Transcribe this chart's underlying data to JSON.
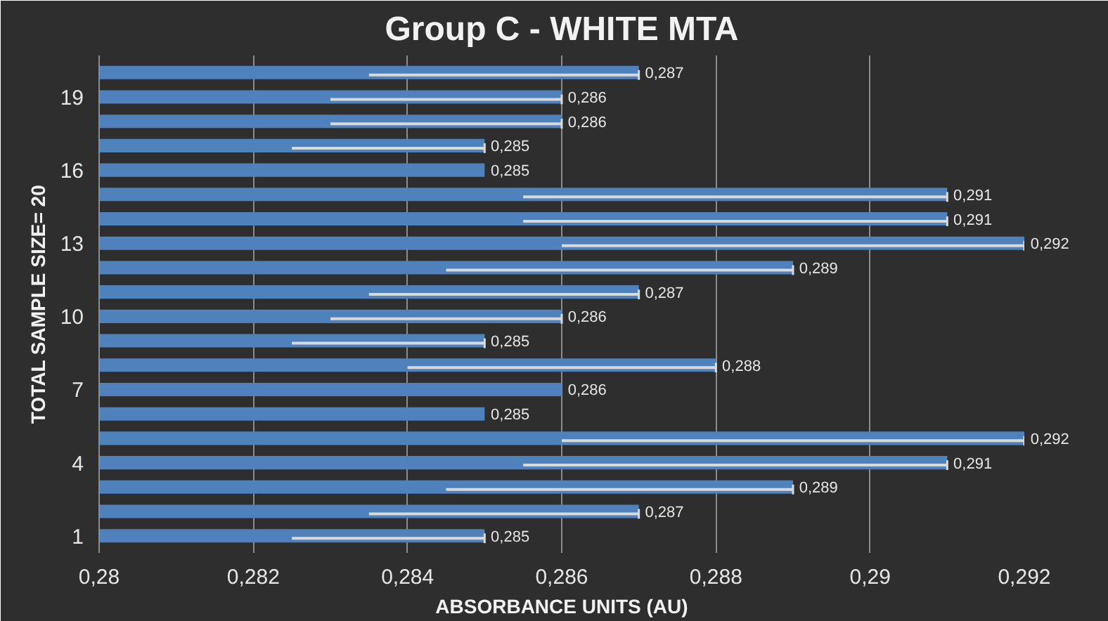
{
  "chart_data": {
    "type": "bar",
    "orientation": "horizontal",
    "title": "Group C - WHITE MTA",
    "xlabel": "ABSORBANCE UNITS (AU)",
    "ylabel": "TOTAL SAMPLE SIZE= 20",
    "categories": [
      null,
      "19",
      null,
      null,
      "16",
      null,
      null,
      "13",
      null,
      null,
      "10",
      null,
      null,
      "7",
      null,
      null,
      "4",
      null,
      null,
      "1"
    ],
    "values": [
      0.287,
      0.286,
      0.286,
      0.285,
      0.285,
      0.291,
      0.291,
      0.292,
      0.289,
      0.287,
      0.286,
      0.285,
      0.288,
      0.286,
      0.285,
      0.292,
      0.291,
      0.289,
      0.287,
      0.285
    ],
    "value_labels": [
      "0,287",
      "0,286",
      "0,286",
      "0,285",
      "0,285",
      "0,291",
      "0,291",
      "0,292",
      "0,289",
      "0,287",
      "0,286",
      "0,285",
      "0,288",
      "0,286",
      "0,285",
      "0,292",
      "0,291",
      "0,289",
      "0,287",
      "0,285"
    ],
    "errors": [
      [
        0.2835,
        0.287
      ],
      [
        0.283,
        0.286
      ],
      [
        0.283,
        0.286
      ],
      [
        0.2825,
        0.285
      ],
      null,
      [
        0.2855,
        0.291
      ],
      [
        0.2855,
        0.291
      ],
      [
        0.286,
        0.292
      ],
      [
        0.2845,
        0.289
      ],
      [
        0.2835,
        0.287
      ],
      [
        0.283,
        0.286
      ],
      [
        0.2825,
        0.285
      ],
      [
        0.284,
        0.288
      ],
      null,
      null,
      [
        0.286,
        0.292
      ],
      [
        0.2855,
        0.291
      ],
      [
        0.2845,
        0.289
      ],
      [
        0.2835,
        0.287
      ],
      [
        0.2825,
        0.285
      ]
    ],
    "color": "#4f81bd",
    "xlim": [
      0.28,
      0.292
    ],
    "xticks": [
      {
        "value": 0.28,
        "label": "0,28"
      },
      {
        "value": 0.282,
        "label": "0,282"
      },
      {
        "value": 0.284,
        "label": "0,284"
      },
      {
        "value": 0.286,
        "label": "0,286"
      },
      {
        "value": 0.288,
        "label": "0,288"
      },
      {
        "value": 0.29,
        "label": "0,29"
      },
      {
        "value": 0.292,
        "label": "0,292"
      }
    ],
    "grid": "x"
  }
}
